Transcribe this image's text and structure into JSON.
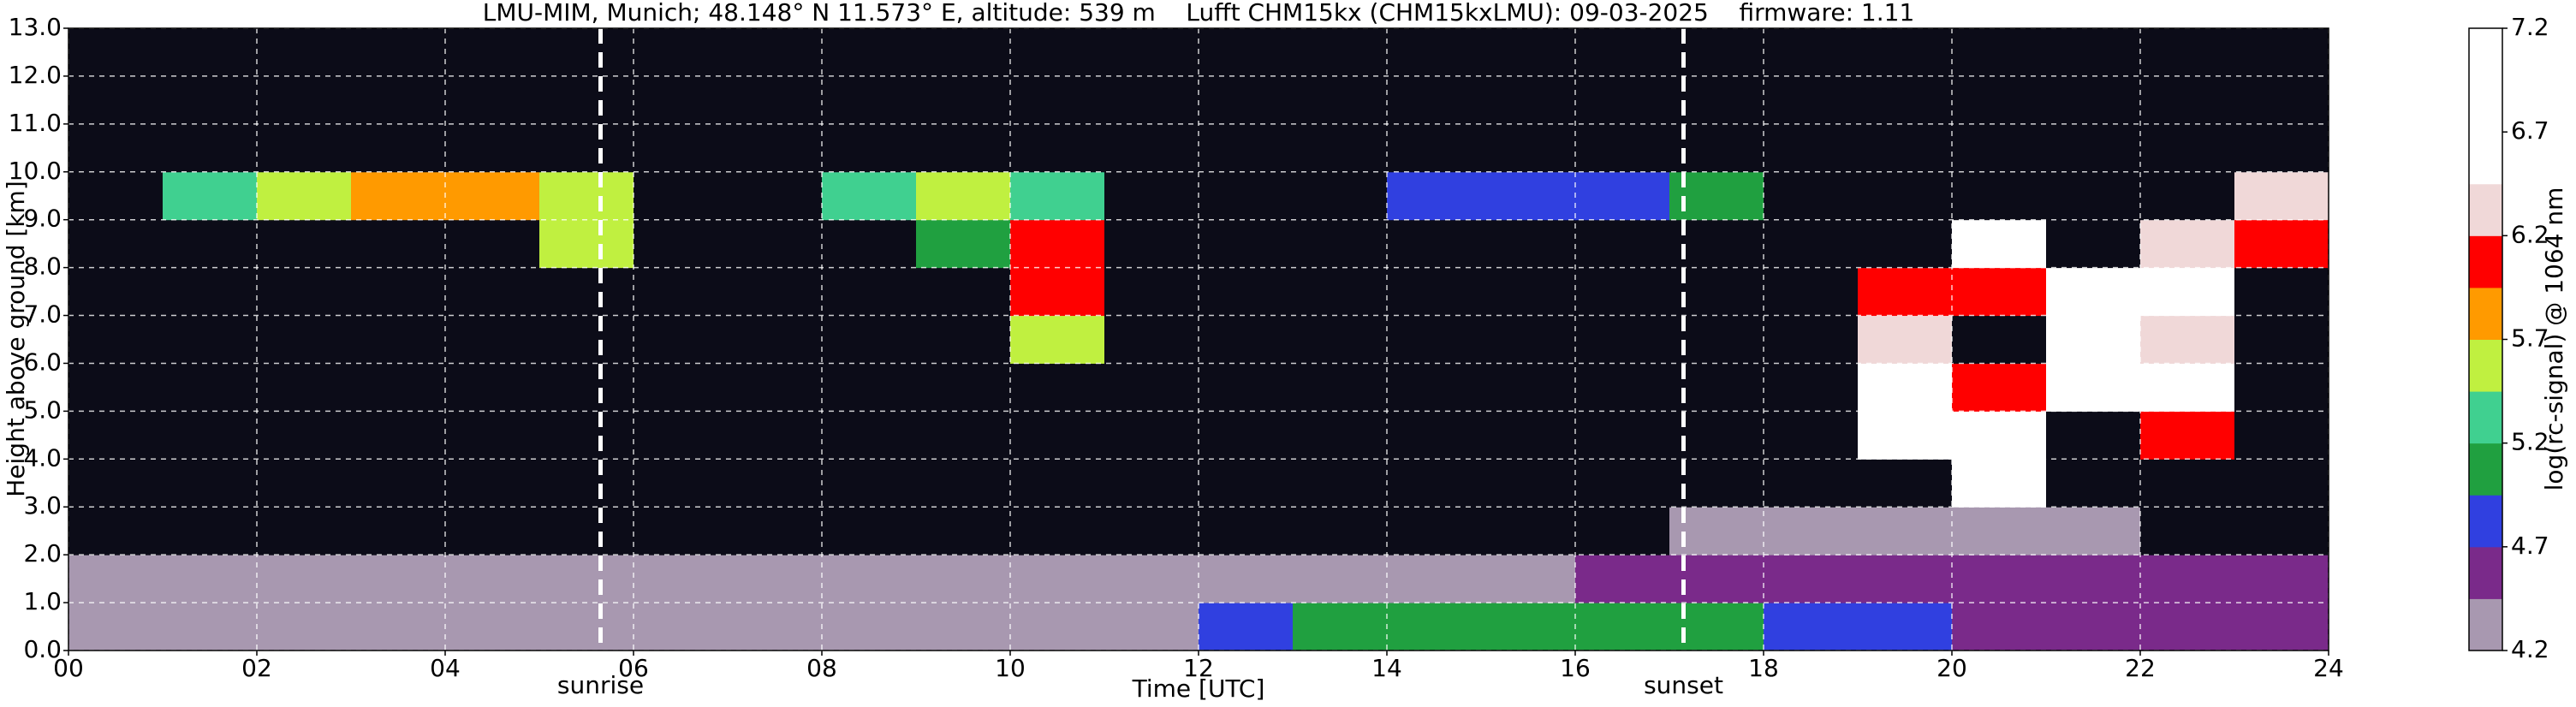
{
  "chart_data": {
    "type": "heatmap",
    "title": "LMU-MIM, Munich; 48.148° N 11.573° E, altitude: 539 m    Lufft CHM15kx (CHM15kxLMU): 09-03-2025    firmware: 1.11",
    "xlabel": "Time [UTC]",
    "ylabel": "Height above ground [km]",
    "colorbar_label": "log(rc-signal) @ 1064 nm",
    "xlim": [
      0,
      24
    ],
    "xticks": [
      {
        "value": 0,
        "label": "00"
      },
      {
        "value": 2,
        "label": "02"
      },
      {
        "value": 4,
        "label": "04"
      },
      {
        "value": 6,
        "label": "06"
      },
      {
        "value": 8,
        "label": "08"
      },
      {
        "value": 10,
        "label": "10"
      },
      {
        "value": 12,
        "label": "12"
      },
      {
        "value": 14,
        "label": "14"
      },
      {
        "value": 16,
        "label": "16"
      },
      {
        "value": 18,
        "label": "18"
      },
      {
        "value": 20,
        "label": "20"
      },
      {
        "value": 22,
        "label": "22"
      },
      {
        "value": 24,
        "label": "24"
      }
    ],
    "ylim": [
      0,
      13
    ],
    "yticks": [
      {
        "value": 0,
        "label": "0.0"
      },
      {
        "value": 1,
        "label": "1.0"
      },
      {
        "value": 2,
        "label": "2.0"
      },
      {
        "value": 3,
        "label": "3.0"
      },
      {
        "value": 4,
        "label": "4.0"
      },
      {
        "value": 5,
        "label": "5.0"
      },
      {
        "value": 6,
        "label": "6.0"
      },
      {
        "value": 7,
        "label": "7.0"
      },
      {
        "value": 8,
        "label": "8.0"
      },
      {
        "value": 9,
        "label": "9.0"
      },
      {
        "value": 10,
        "label": "10.0"
      },
      {
        "value": 11,
        "label": "11.0"
      },
      {
        "value": 12,
        "label": "12.0"
      },
      {
        "value": 13,
        "label": "13.0"
      }
    ],
    "clim": [
      4.2,
      7.2
    ],
    "cticks": [
      4.2,
      4.7,
      5.2,
      5.7,
      6.2,
      6.7,
      7.2
    ],
    "colormap": [
      "#a898b0",
      "#7a2a8a",
      "#3040e0",
      "#20a040",
      "#40d090",
      "#c0f040",
      "#ff9a00",
      "#ff0000",
      "#f0d8d8",
      "#ffffff",
      "#ffffff",
      "#ffffff"
    ],
    "under_color": "#0c0c18",
    "grid": true,
    "annotations": [
      {
        "text": "sunrise",
        "x": 5.65
      },
      {
        "text": "sunset",
        "x": 17.15
      }
    ],
    "z": [
      [
        4.4,
        4.4,
        4.4,
        4.4,
        4.4,
        4.4,
        4.4,
        4.4,
        4.4,
        4.4,
        4.4,
        4.4,
        4.9,
        5.0,
        5.0,
        5.1,
        5.1,
        5.0,
        4.8,
        4.7,
        4.6,
        4.6,
        4.6,
        4.6
      ],
      [
        4.3,
        4.3,
        4.3,
        4.3,
        4.3,
        4.3,
        4.2,
        4.2,
        4.2,
        4.2,
        4.2,
        4.2,
        4.3,
        4.3,
        4.3,
        4.3,
        4.6,
        4.6,
        4.6,
        4.6,
        4.6,
        4.6,
        4.6,
        4.6
      ],
      [
        4.0,
        4.0,
        4.0,
        4.0,
        4.0,
        4.0,
        4.0,
        4.0,
        4.0,
        4.0,
        4.0,
        4.0,
        4.0,
        4.0,
        4.0,
        4.0,
        4.0,
        4.2,
        4.2,
        4.2,
        4.2,
        4.2,
        4.0,
        4.0
      ],
      [
        4.0,
        4.0,
        4.0,
        4.0,
        4.0,
        4.0,
        4.0,
        4.0,
        4.0,
        4.0,
        4.0,
        4.0,
        4.0,
        4.0,
        4.0,
        4.0,
        4.0,
        4.0,
        4.0,
        4.0,
        6.5,
        4.0,
        4.0,
        4.0
      ],
      [
        4.0,
        4.0,
        4.0,
        4.0,
        4.0,
        4.0,
        4.0,
        4.0,
        4.0,
        4.0,
        4.0,
        4.0,
        4.0,
        4.0,
        4.0,
        4.0,
        4.0,
        4.0,
        4.0,
        6.5,
        6.5,
        4.0,
        6.0,
        4.0
      ],
      [
        4.0,
        4.0,
        4.0,
        4.0,
        4.0,
        4.0,
        4.0,
        4.0,
        4.0,
        4.0,
        4.0,
        4.0,
        4.0,
        4.0,
        4.0,
        4.0,
        4.0,
        4.0,
        4.0,
        6.5,
        6.0,
        6.5,
        6.5,
        4.0
      ],
      [
        4.0,
        4.0,
        4.0,
        4.0,
        4.0,
        4.0,
        4.0,
        4.0,
        4.0,
        4.0,
        5.5,
        4.0,
        4.0,
        4.0,
        4.0,
        4.0,
        4.0,
        4.0,
        4.0,
        6.3,
        4.0,
        6.5,
        6.3,
        4.0
      ],
      [
        4.0,
        4.0,
        4.0,
        4.0,
        4.0,
        4.0,
        4.0,
        4.0,
        4.0,
        4.0,
        6.0,
        4.0,
        4.0,
        4.0,
        4.0,
        4.0,
        4.0,
        4.0,
        4.0,
        6.0,
        6.0,
        6.5,
        6.5,
        4.0
      ],
      [
        4.0,
        4.0,
        4.0,
        4.0,
        4.0,
        5.6,
        4.0,
        4.0,
        4.0,
        5.0,
        6.0,
        4.0,
        4.0,
        4.0,
        4.0,
        4.0,
        4.0,
        4.0,
        4.0,
        4.0,
        6.5,
        4.0,
        6.3,
        6.0
      ],
      [
        4.0,
        5.2,
        5.5,
        5.8,
        5.9,
        5.6,
        4.0,
        4.0,
        5.3,
        5.6,
        5.2,
        4.0,
        4.0,
        4.0,
        4.9,
        4.9,
        4.9,
        5.0,
        4.0,
        4.0,
        4.0,
        4.0,
        4.0,
        6.3
      ],
      [
        4.0,
        4.0,
        4.0,
        4.0,
        4.0,
        4.0,
        4.0,
        4.0,
        4.0,
        4.0,
        4.0,
        4.0,
        4.0,
        4.0,
        4.0,
        4.0,
        4.0,
        4.0,
        4.0,
        4.0,
        4.0,
        4.0,
        4.0,
        4.0
      ],
      [
        4.0,
        4.0,
        4.0,
        4.0,
        4.0,
        4.0,
        4.0,
        4.0,
        4.0,
        4.0,
        4.0,
        4.0,
        4.0,
        4.0,
        4.0,
        4.0,
        4.0,
        4.0,
        4.0,
        4.0,
        4.0,
        4.0,
        4.0,
        4.0
      ],
      [
        4.0,
        4.0,
        4.0,
        4.0,
        4.0,
        4.0,
        4.0,
        4.0,
        4.0,
        4.0,
        4.0,
        4.0,
        4.0,
        4.0,
        4.0,
        4.0,
        4.0,
        4.0,
        4.0,
        4.0,
        4.0,
        4.0,
        4.0,
        4.0
      ]
    ]
  }
}
